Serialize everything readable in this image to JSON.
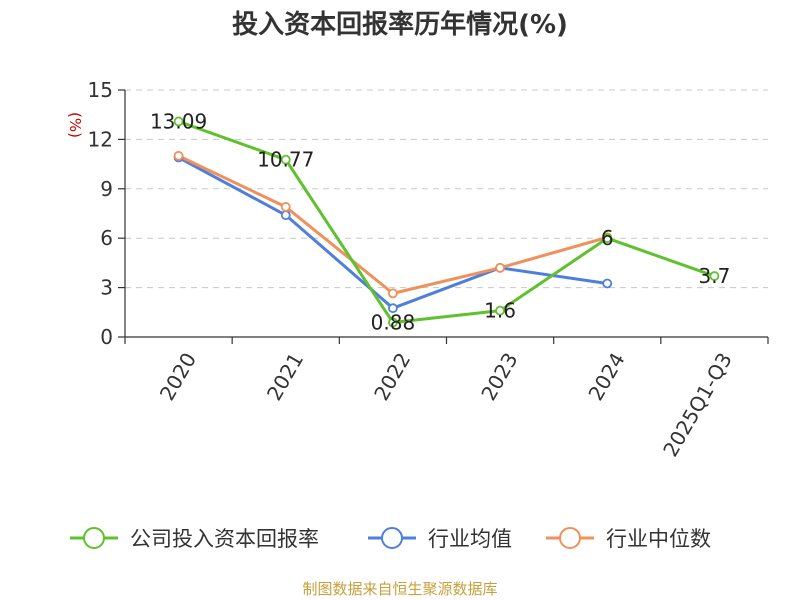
{
  "title": "投入资本回报率历年情况(%)",
  "source": "制图数据来自恒生聚源数据库",
  "chart_data": {
    "type": "line",
    "title": "投入资本回报率历年情况(%)",
    "ylabel": "(%)",
    "xlabel": "",
    "categories": [
      "2020",
      "2021",
      "2022",
      "2023",
      "2024",
      "2025Q1-Q3"
    ],
    "ylim": [
      0,
      15
    ],
    "yticks": [
      0,
      3,
      6,
      9,
      12,
      15
    ],
    "grid": true,
    "legend_position": "bottom",
    "series": [
      {
        "name": "公司投入资本回报率",
        "color": "#5ec12d",
        "values": [
          13.09,
          10.77,
          0.88,
          1.6,
          6,
          3.7
        ],
        "labels": [
          "13.09",
          "10.77",
          "0.88",
          "1.6",
          "6",
          "3.7"
        ]
      },
      {
        "name": "行业均值",
        "color": "#4f7fdc",
        "values": [
          10.9,
          7.4,
          1.75,
          4.2,
          3.25,
          null
        ]
      },
      {
        "name": "行业中位数",
        "color": "#f0905a",
        "values": [
          11.0,
          7.9,
          2.65,
          4.2,
          6.05,
          null
        ]
      }
    ]
  }
}
